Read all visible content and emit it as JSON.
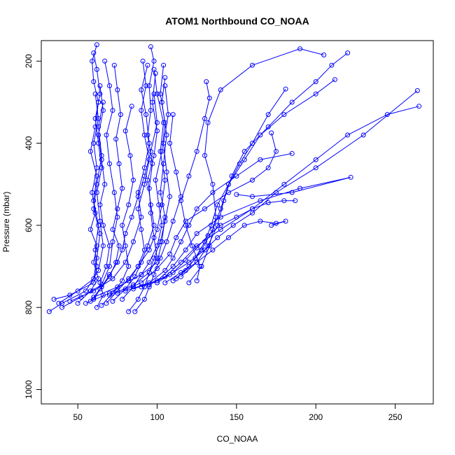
{
  "chart_data": {
    "type": "line",
    "title": "ATOM1 Northbound CO_NOAA",
    "xlabel": "CO_NOAA",
    "ylabel": "Pressure (mbar)",
    "xlim": [
      27,
      274
    ],
    "ylim": [
      1035,
      150
    ],
    "y_reversed": true,
    "xticks": [
      50,
      100,
      150,
      200,
      250
    ],
    "yticks": [
      200,
      400,
      600,
      800,
      1000
    ],
    "grid": false,
    "color": "#0000ff",
    "marker": "open-circle",
    "series": [
      {
        "x": [
          35,
          45,
          60,
          62,
          61,
          63,
          60,
          62,
          58,
          61,
          63,
          60,
          59,
          62
        ],
        "y": [
          780,
          770,
          740,
          700,
          660,
          600,
          540,
          480,
          420,
          360,
          300,
          250,
          200,
          160
        ]
      },
      {
        "x": [
          32,
          40,
          55,
          63,
          66,
          64,
          62,
          65,
          63,
          61,
          64,
          62,
          60
        ],
        "y": [
          810,
          790,
          760,
          710,
          650,
          590,
          520,
          460,
          400,
          340,
          280,
          220,
          180
        ]
      },
      {
        "x": [
          40,
          52,
          65,
          70,
          72,
          75,
          73,
          70,
          68,
          72,
          70,
          67
        ],
        "y": [
          800,
          775,
          745,
          700,
          640,
          580,
          520,
          450,
          380,
          320,
          260,
          200
        ]
      },
      {
        "x": [
          38,
          50,
          60,
          62,
          64,
          60,
          62,
          65,
          63,
          66
        ],
        "y": [
          790,
          760,
          730,
          680,
          620,
          560,
          500,
          430,
          360,
          300
        ]
      },
      {
        "x": [
          45,
          60,
          72,
          80,
          85,
          90,
          88,
          92,
          95,
          93,
          90,
          94
        ],
        "y": [
          785,
          760,
          730,
          690,
          640,
          580,
          520,
          460,
          400,
          330,
          270,
          210
        ]
      },
      {
        "x": [
          55,
          70,
          82,
          88,
          95,
          100,
          103,
          105,
          102,
          104,
          100,
          98
        ],
        "y": [
          790,
          765,
          735,
          700,
          660,
          610,
          550,
          490,
          420,
          350,
          280,
          220
        ]
      },
      {
        "x": [
          60,
          75,
          90,
          100,
          103,
          105,
          102,
          104,
          106,
          103,
          105
        ],
        "y": [
          775,
          750,
          720,
          690,
          640,
          580,
          520,
          450,
          380,
          300,
          240
        ]
      },
      {
        "x": [
          70,
          85,
          95,
          100,
          98,
          96,
          95,
          97,
          94,
          96,
          95,
          98,
          96
        ],
        "y": [
          770,
          745,
          715,
          680,
          630,
          570,
          510,
          450,
          380,
          320,
          260,
          200,
          165
        ]
      },
      {
        "x": [
          80,
          95,
          105,
          110,
          115,
          120,
          125,
          135,
          150,
          165,
          185
        ],
        "y": [
          760,
          740,
          710,
          680,
          640,
          600,
          560,
          520,
          480,
          440,
          425
        ]
      },
      {
        "x": [
          75,
          90,
          100,
          108,
          112,
          118,
          130,
          145,
          160,
          170,
          175,
          172
        ],
        "y": [
          765,
          740,
          705,
          670,
          630,
          590,
          560,
          520,
          490,
          460,
          420,
          375
        ]
      },
      {
        "x": [
          85,
          100,
          110,
          118,
          125,
          140,
          165,
          190,
          222,
          185,
          160,
          150
        ],
        "y": [
          755,
          735,
          700,
          660,
          620,
          580,
          540,
          510,
          483,
          520,
          530,
          525
        ]
      },
      {
        "x": [
          90,
          105,
          115,
          125,
          140,
          160,
          180,
          200,
          220,
          245,
          265
        ],
        "y": [
          750,
          725,
          690,
          650,
          610,
          560,
          500,
          440,
          380,
          330,
          310
        ]
      },
      {
        "x": [
          95,
          108,
          120,
          130,
          138,
          148,
          160,
          175,
          200,
          230,
          264
        ],
        "y": [
          745,
          720,
          690,
          660,
          630,
          600,
          570,
          520,
          460,
          380,
          272
        ]
      },
      {
        "x": [
          100,
          110,
          118,
          125,
          132,
          140,
          150,
          160,
          170,
          180,
          187
        ],
        "y": [
          740,
          715,
          685,
          655,
          625,
          600,
          580,
          560,
          545,
          540,
          540
        ]
      },
      {
        "x": [
          105,
          115,
          125,
          135,
          145,
          155,
          165,
          175,
          181,
          172
        ],
        "y": [
          740,
          715,
          690,
          660,
          630,
          600,
          590,
          595,
          590,
          600
        ]
      },
      {
        "x": [
          110,
          118,
          124,
          130,
          134,
          138,
          145,
          152,
          160,
          170,
          181
        ],
        "y": [
          735,
          710,
          680,
          640,
          600,
          550,
          500,
          450,
          400,
          330,
          268
        ]
      },
      {
        "x": [
          112,
          120,
          128,
          135,
          140,
          145,
          155,
          165,
          180,
          200,
          212
        ],
        "y": [
          730,
          700,
          660,
          610,
          560,
          500,
          440,
          380,
          330,
          280,
          245
        ]
      },
      {
        "x": [
          115,
          125,
          132,
          138,
          142,
          147,
          155,
          170,
          185,
          200,
          210,
          220
        ],
        "y": [
          725,
          690,
          650,
          600,
          540,
          480,
          420,
          360,
          300,
          250,
          210,
          180
        ]
      },
      {
        "x": [
          120,
          128,
          133,
          137,
          135,
          130,
          132,
          140,
          160,
          190,
          205
        ],
        "y": [
          740,
          700,
          650,
          580,
          500,
          430,
          350,
          270,
          210,
          170,
          185
        ]
      },
      {
        "x": [
          125,
          127,
          122,
          118,
          115,
          120,
          125,
          130,
          133,
          131
        ],
        "y": [
          735,
          700,
          650,
          600,
          540,
          480,
          420,
          340,
          290,
          250
        ]
      },
      {
        "x": [
          62,
          66,
          64,
          68,
          70,
          66,
          64,
          67,
          65,
          63,
          66,
          64
        ],
        "y": [
          800,
          770,
          740,
          700,
          650,
          600,
          550,
          500,
          440,
          380,
          320,
          260
        ]
      },
      {
        "x": [
          65,
          72,
          78,
          82,
          80,
          78,
          82,
          85,
          83,
          80,
          84
        ],
        "y": [
          795,
          765,
          735,
          700,
          650,
          600,
          550,
          490,
          430,
          370,
          310
        ]
      },
      {
        "x": [
          68,
          75,
          82,
          88,
          92,
          90,
          88,
          92,
          95,
          92,
          90,
          93,
          91
        ],
        "y": [
          790,
          760,
          730,
          700,
          660,
          610,
          560,
          500,
          440,
          380,
          320,
          260,
          200
        ]
      },
      {
        "x": [
          72,
          80,
          86,
          90,
          94,
          98,
          96,
          94,
          98,
          100,
          97,
          99
        ],
        "y": [
          785,
          755,
          725,
          690,
          650,
          600,
          550,
          490,
          430,
          370,
          300,
          230
        ]
      },
      {
        "x": [
          78,
          85,
          90,
          95,
          100,
          103,
          101,
          99,
          103,
          105,
          102,
          104
        ],
        "y": [
          780,
          750,
          720,
          690,
          650,
          600,
          550,
          490,
          420,
          350,
          280,
          210
        ]
      },
      {
        "x": [
          82,
          88,
          92,
          95,
          98,
          102,
          105,
          108,
          106,
          104,
          107,
          105
        ],
        "y": [
          810,
          780,
          750,
          715,
          680,
          640,
          590,
          530,
          470,
          400,
          330,
          260
        ]
      },
      {
        "x": [
          86,
          92,
          95,
          98,
          102,
          106,
          110,
          115,
          112,
          108,
          110
        ],
        "y": [
          810,
          780,
          750,
          720,
          680,
          640,
          590,
          530,
          470,
          400,
          330
        ]
      },
      {
        "x": [
          50,
          58,
          63,
          60,
          62,
          58,
          61,
          59,
          62,
          60,
          63,
          61
        ],
        "y": [
          790,
          760,
          730,
          690,
          650,
          610,
          570,
          520,
          460,
          400,
          340,
          280
        ]
      },
      {
        "x": [
          58,
          64,
          70,
          74,
          76,
          72,
          75,
          78,
          76,
          74,
          77,
          75,
          73
        ],
        "y": [
          785,
          755,
          725,
          690,
          650,
          610,
          560,
          510,
          450,
          390,
          330,
          270,
          210
        ]
      },
      {
        "x": [
          60,
          65,
          70,
          75,
          78,
          80,
          84,
          88,
          92,
          96,
          100,
          98
        ],
        "y": [
          780,
          750,
          720,
          690,
          660,
          620,
          580,
          530,
          480,
          420,
          350,
          280
        ]
      }
    ]
  }
}
